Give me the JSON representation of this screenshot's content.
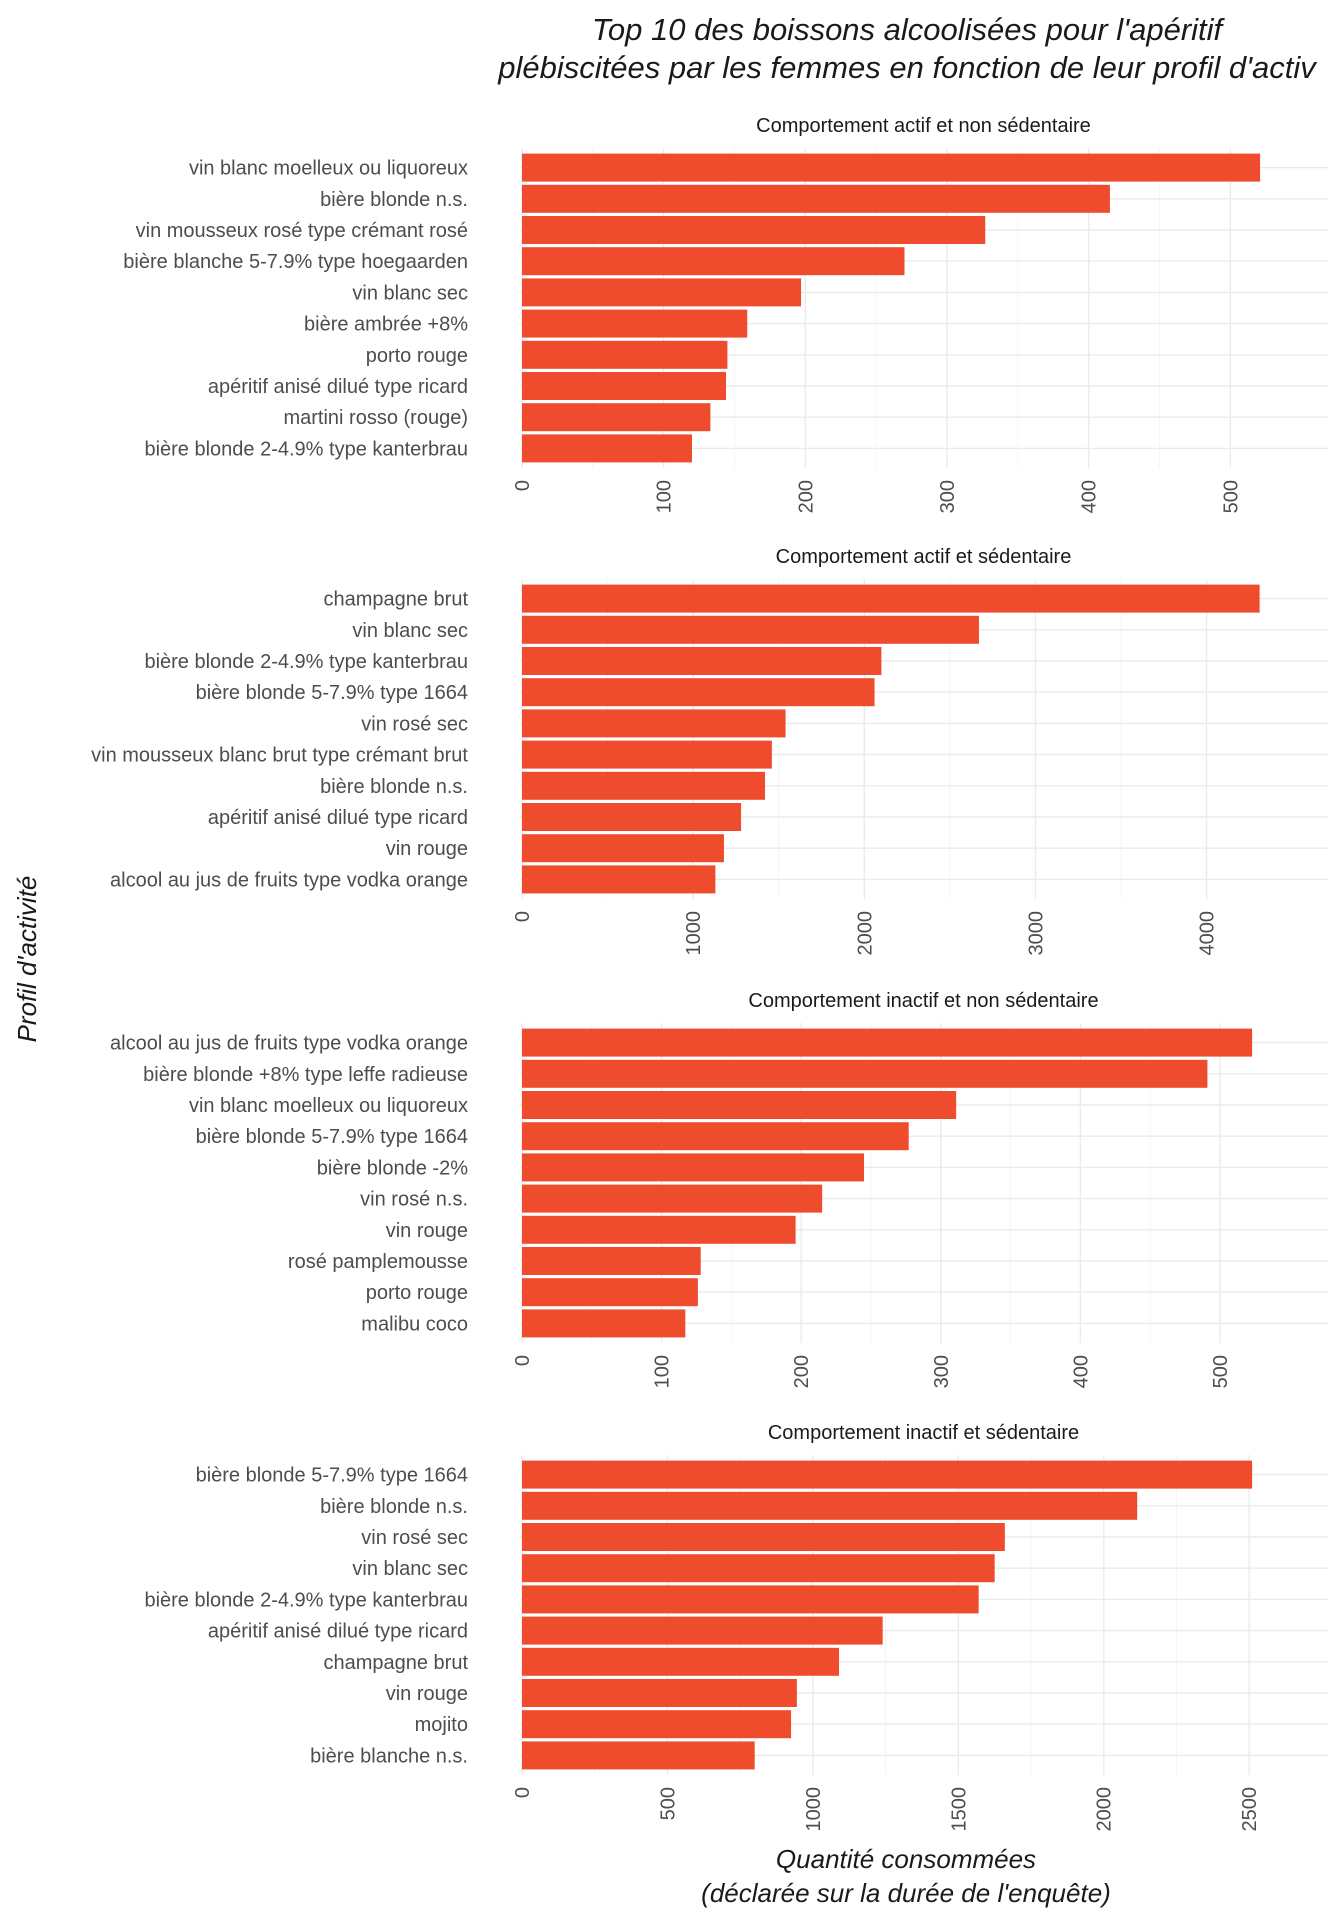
{
  "chart_data": {
    "type": "bar",
    "orientation": "horizontal",
    "title": "Top 10 des boissons alcoolisées pour l'apéritif plébiscitées par les femmes en fonction de leur profil d'activ",
    "title_lines": [
      "Top 10 des boissons alcoolisées pour l'apéritif",
      "plébiscitées par les femmes en fonction de leur profil d'activ"
    ],
    "xlabel": "Quantité consommées (déclarée sur la durée de l'enquête)",
    "xlabel_lines": [
      "Quantité consommées",
      "(déclarée sur la durée de l'enquête)"
    ],
    "ylabel": "Profil d'activité",
    "bar_color": "#ee4c2c",
    "grid": true,
    "legend": "none",
    "panels": [
      {
        "title": "Comportement actif et non sédentaire",
        "xlim": [
          0,
          540
        ],
        "ticks": [
          0,
          100,
          200,
          300,
          400,
          500
        ],
        "categories": [
          "vin blanc moelleux ou liquoreux",
          "bière blonde n.s.",
          "vin mousseux rosé type crémant rosé",
          "bière blanche 5-7.9% type hoegaarden",
          "vin blanc sec",
          "bière ambrée +8%",
          "porto rouge",
          "apéritif anisé dilué type ricard",
          "martini rosso (rouge)",
          "bière blonde 2-4.9% type kanterbrau"
        ],
        "values": [
          521,
          415,
          327,
          270,
          197,
          159,
          145,
          144,
          133,
          120
        ]
      },
      {
        "title": "Comportement actif et sédentaire",
        "xlim": [
          0,
          4470
        ],
        "ticks": [
          0,
          1000,
          2000,
          3000,
          4000
        ],
        "categories": [
          "champagne brut",
          "vin blanc sec",
          "bière blonde 2-4.9% type kanterbrau",
          "bière blonde 5-7.9% type 1664",
          "vin rosé sec",
          "vin mousseux blanc brut type crémant brut",
          "bière blonde n.s.",
          "apéritif anisé dilué type ricard",
          "vin rouge",
          "alcool au jus de fruits type vodka orange"
        ],
        "values": [
          4310,
          2670,
          2100,
          2060,
          1540,
          1460,
          1420,
          1280,
          1180,
          1130
        ]
      },
      {
        "title": "Comportement inactif et non sédentaire",
        "xlim": [
          0,
          548
        ],
        "ticks": [
          0,
          100,
          200,
          300,
          400,
          500
        ],
        "categories": [
          "alcool au jus de fruits type vodka orange",
          "bière blonde +8% type leffe radieuse",
          "vin blanc moelleux ou liquoreux",
          "bière blonde 5-7.9% type 1664",
          "bière blonde -2%",
          "vin rosé n.s.",
          "vin rouge",
          "rosé pamplemousse",
          "porto rouge",
          "malibu coco"
        ],
        "values": [
          523,
          491,
          311,
          277,
          245,
          215,
          196,
          128,
          126,
          117
        ]
      },
      {
        "title": "Comportement inactif et sédentaire",
        "xlim": [
          0,
          2630
        ],
        "ticks": [
          0,
          500,
          1000,
          1500,
          2000,
          2500
        ],
        "categories": [
          "bière blonde 5-7.9% type 1664",
          "bière blonde n.s.",
          "vin rosé sec",
          "vin blanc sec",
          "bière blonde 2-4.9% type kanterbrau",
          "apéritif anisé dilué type ricard",
          "champagne brut",
          "vin rouge",
          "mojito",
          "bière blanche n.s."
        ],
        "values": [
          2510,
          2115,
          1660,
          1625,
          1570,
          1240,
          1090,
          945,
          925,
          800
        ]
      }
    ]
  }
}
